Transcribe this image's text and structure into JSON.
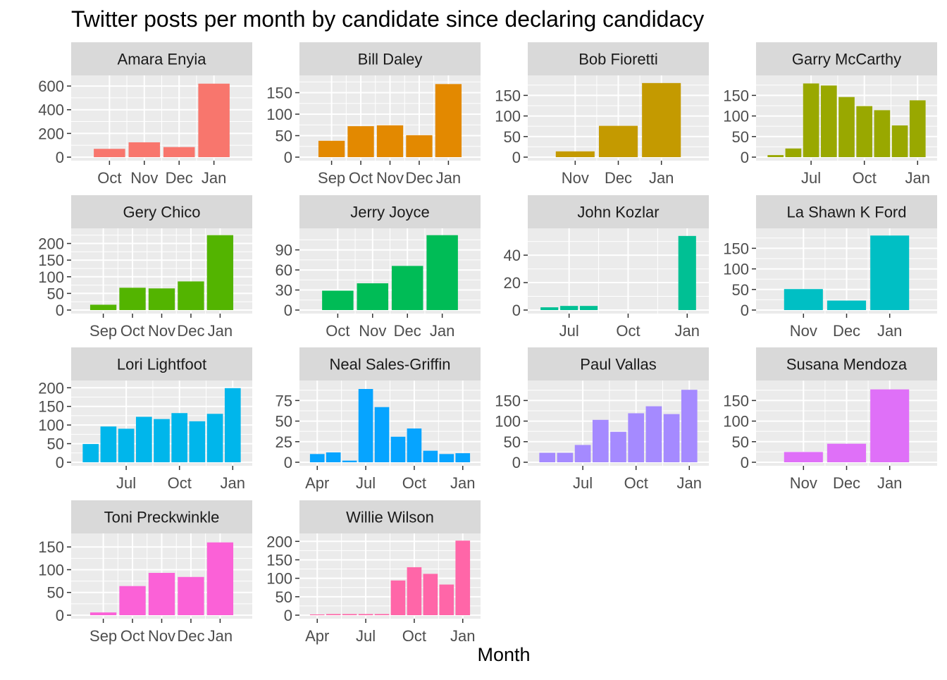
{
  "chart_data": {
    "type": "bar",
    "title": "Twitter posts per month by candidate since declaring candidacy",
    "xlabel": "Month",
    "ylabel": "",
    "grid": true,
    "legend": "none",
    "facets": [
      {
        "name": "Amara Enyia",
        "color": "#F8766D",
        "ylim": [
          0,
          660
        ],
        "yticks": [
          0,
          200,
          400,
          600
        ],
        "bars": [
          {
            "x": "2018-10",
            "y": 70
          },
          {
            "x": "2018-11",
            "y": 125
          },
          {
            "x": "2018-12",
            "y": 85
          },
          {
            "x": "2019-01",
            "y": 620
          }
        ],
        "xticks": [
          {
            "at": "2018-10",
            "label": "Oct"
          },
          {
            "at": "2018-11",
            "label": "Nov"
          },
          {
            "at": "2018-12",
            "label": "Dec"
          },
          {
            "at": "2019-01",
            "label": "Jan"
          }
        ]
      },
      {
        "name": "Bill Daley",
        "color": "#E38900",
        "ylim": [
          0,
          182
        ],
        "yticks": [
          0,
          50,
          100,
          150
        ],
        "bars": [
          {
            "x": "2018-09",
            "y": 38
          },
          {
            "x": "2018-10",
            "y": 72
          },
          {
            "x": "2018-11",
            "y": 74
          },
          {
            "x": "2018-12",
            "y": 51
          },
          {
            "x": "2019-01",
            "y": 170
          }
        ],
        "xticks": [
          {
            "at": "2018-09",
            "label": "Sep"
          },
          {
            "at": "2018-10",
            "label": "Oct"
          },
          {
            "at": "2018-11",
            "label": "Nov"
          },
          {
            "at": "2018-12",
            "label": "Dec"
          },
          {
            "at": "2019-01",
            "label": "Jan"
          }
        ]
      },
      {
        "name": "Bob Fioretti",
        "color": "#C49A00",
        "ylim": [
          0,
          190
        ],
        "yticks": [
          0,
          50,
          100,
          150
        ],
        "bars": [
          {
            "x": "2018-11",
            "y": 14
          },
          {
            "x": "2018-12",
            "y": 76
          },
          {
            "x": "2019-01",
            "y": 180
          }
        ],
        "xticks": [
          {
            "at": "2018-11",
            "label": "Nov"
          },
          {
            "at": "2018-12",
            "label": "Dec"
          },
          {
            "at": "2019-01",
            "label": "Jan"
          }
        ]
      },
      {
        "name": "Garry McCarthy",
        "color": "#99A800",
        "ylim": [
          0,
          190
        ],
        "yticks": [
          0,
          50,
          100,
          150
        ],
        "bars": [
          {
            "x": "2018-05",
            "y": 5
          },
          {
            "x": "2018-06",
            "y": 21
          },
          {
            "x": "2018-07",
            "y": 179
          },
          {
            "x": "2018-08",
            "y": 174
          },
          {
            "x": "2018-09",
            "y": 146
          },
          {
            "x": "2018-10",
            "y": 124
          },
          {
            "x": "2018-11",
            "y": 114
          },
          {
            "x": "2018-12",
            "y": 77
          },
          {
            "x": "2019-01",
            "y": 138
          }
        ],
        "xticks": [
          {
            "at": "2018-07",
            "label": "Jul"
          },
          {
            "at": "2018-10",
            "label": "Oct"
          },
          {
            "at": "2019-01",
            "label": "Jan"
          }
        ]
      },
      {
        "name": "Gery Chico",
        "color": "#53B400",
        "ylim": [
          0,
          235
        ],
        "yticks": [
          0,
          50,
          100,
          150,
          200
        ],
        "bars": [
          {
            "x": "2018-09",
            "y": 16
          },
          {
            "x": "2018-10",
            "y": 67
          },
          {
            "x": "2018-11",
            "y": 65
          },
          {
            "x": "2018-12",
            "y": 86
          },
          {
            "x": "2019-01",
            "y": 225
          }
        ],
        "xticks": [
          {
            "at": "2018-09",
            "label": "Sep"
          },
          {
            "at": "2018-10",
            "label": "Oct"
          },
          {
            "at": "2018-11",
            "label": "Nov"
          },
          {
            "at": "2018-12",
            "label": "Dec"
          },
          {
            "at": "2019-01",
            "label": "Jan"
          }
        ]
      },
      {
        "name": "Jerry Joyce",
        "color": "#00BC56",
        "ylim": [
          0,
          117
        ],
        "yticks": [
          0,
          30,
          60,
          90
        ],
        "bars": [
          {
            "x": "2018-10",
            "y": 29
          },
          {
            "x": "2018-11",
            "y": 40
          },
          {
            "x": "2018-12",
            "y": 66
          },
          {
            "x": "2019-01",
            "y": 112
          }
        ],
        "xticks": [
          {
            "at": "2018-10",
            "label": "Oct"
          },
          {
            "at": "2018-11",
            "label": "Nov"
          },
          {
            "at": "2018-12",
            "label": "Dec"
          },
          {
            "at": "2019-01",
            "label": "Jan"
          }
        ]
      },
      {
        "name": "John Kozlar",
        "color": "#00C094",
        "ylim": [
          0,
          57
        ],
        "yticks": [
          0,
          20,
          40
        ],
        "bars": [
          {
            "x": "2018-06",
            "y": 2
          },
          {
            "x": "2018-07",
            "y": 3
          },
          {
            "x": "2018-08",
            "y": 3
          },
          {
            "x": "2018-09",
            "y": 0
          },
          {
            "x": "2018-10",
            "y": 0
          },
          {
            "x": "2018-11",
            "y": 0
          },
          {
            "x": "2018-12",
            "y": 0
          },
          {
            "x": "2019-01",
            "y": 54
          }
        ],
        "xticks": [
          {
            "at": "2018-07",
            "label": "Jul"
          },
          {
            "at": "2018-10",
            "label": "Oct"
          },
          {
            "at": "2019-01",
            "label": "Jan"
          }
        ]
      },
      {
        "name": "La Shawn K Ford",
        "color": "#00BFC4",
        "ylim": [
          0,
          190
        ],
        "yticks": [
          0,
          50,
          100,
          150
        ],
        "bars": [
          {
            "x": "2018-11",
            "y": 51
          },
          {
            "x": "2018-12",
            "y": 23
          },
          {
            "x": "2019-01",
            "y": 181
          }
        ],
        "xticks": [
          {
            "at": "2018-11",
            "label": "Nov"
          },
          {
            "at": "2018-12",
            "label": "Dec"
          },
          {
            "at": "2019-01",
            "label": "Jan"
          }
        ]
      },
      {
        "name": "Lori Lightfoot",
        "color": "#00B6EB",
        "ylim": [
          0,
          210
        ],
        "yticks": [
          0,
          50,
          100,
          150,
          200
        ],
        "bars": [
          {
            "x": "2018-05",
            "y": 49
          },
          {
            "x": "2018-06",
            "y": 96
          },
          {
            "x": "2018-07",
            "y": 90
          },
          {
            "x": "2018-08",
            "y": 122
          },
          {
            "x": "2018-09",
            "y": 116
          },
          {
            "x": "2018-10",
            "y": 132
          },
          {
            "x": "2018-11",
            "y": 110
          },
          {
            "x": "2018-12",
            "y": 130
          },
          {
            "x": "2019-01",
            "y": 199
          }
        ],
        "xticks": [
          {
            "at": "2018-07",
            "label": "Jul"
          },
          {
            "at": "2018-10",
            "label": "Oct"
          },
          {
            "at": "2019-01",
            "label": "Jan"
          }
        ]
      },
      {
        "name": "Neal Sales-Griffin",
        "color": "#06A4FF",
        "ylim": [
          0,
          95
        ],
        "yticks": [
          0,
          25,
          50,
          75
        ],
        "bars": [
          {
            "x": "2018-04",
            "y": 10
          },
          {
            "x": "2018-05",
            "y": 12
          },
          {
            "x": "2018-06",
            "y": 2
          },
          {
            "x": "2018-07",
            "y": 89
          },
          {
            "x": "2018-08",
            "y": 67
          },
          {
            "x": "2018-09",
            "y": 31
          },
          {
            "x": "2018-10",
            "y": 41
          },
          {
            "x": "2018-11",
            "y": 14
          },
          {
            "x": "2018-12",
            "y": 10
          },
          {
            "x": "2019-01",
            "y": 11
          }
        ],
        "xticks": [
          {
            "at": "2018-04",
            "label": "Apr"
          },
          {
            "at": "2018-07",
            "label": "Jul"
          },
          {
            "at": "2018-10",
            "label": "Oct"
          },
          {
            "at": "2019-01",
            "label": "Jan"
          }
        ]
      },
      {
        "name": "Paul Vallas",
        "color": "#A58AFF",
        "ylim": [
          0,
          190
        ],
        "yticks": [
          0,
          50,
          100,
          150
        ],
        "bars": [
          {
            "x": "2018-05",
            "y": 23
          },
          {
            "x": "2018-06",
            "y": 23
          },
          {
            "x": "2018-07",
            "y": 42
          },
          {
            "x": "2018-08",
            "y": 103
          },
          {
            "x": "2018-09",
            "y": 74
          },
          {
            "x": "2018-10",
            "y": 119
          },
          {
            "x": "2018-11",
            "y": 136
          },
          {
            "x": "2018-12",
            "y": 117
          },
          {
            "x": "2019-01",
            "y": 176
          }
        ],
        "xticks": [
          {
            "at": "2018-07",
            "label": "Jul"
          },
          {
            "at": "2018-10",
            "label": "Oct"
          },
          {
            "at": "2019-01",
            "label": "Jan"
          }
        ]
      },
      {
        "name": "Susana Mendoza",
        "color": "#DF70F8",
        "ylim": [
          0,
          190
        ],
        "yticks": [
          0,
          50,
          100,
          150
        ],
        "bars": [
          {
            "x": "2018-11",
            "y": 25
          },
          {
            "x": "2018-12",
            "y": 45
          },
          {
            "x": "2019-01",
            "y": 177
          }
        ],
        "xticks": [
          {
            "at": "2018-11",
            "label": "Nov"
          },
          {
            "at": "2018-12",
            "label": "Dec"
          },
          {
            "at": "2019-01",
            "label": "Jan"
          }
        ]
      },
      {
        "name": "Toni Preckwinkle",
        "color": "#FB61D7",
        "ylim": [
          0,
          172
        ],
        "yticks": [
          0,
          50,
          100,
          150
        ],
        "bars": [
          {
            "x": "2018-09",
            "y": 6
          },
          {
            "x": "2018-10",
            "y": 64
          },
          {
            "x": "2018-11",
            "y": 93
          },
          {
            "x": "2018-12",
            "y": 84
          },
          {
            "x": "2019-01",
            "y": 160
          }
        ],
        "xticks": [
          {
            "at": "2018-09",
            "label": "Sep"
          },
          {
            "at": "2018-10",
            "label": "Oct"
          },
          {
            "at": "2018-11",
            "label": "Nov"
          },
          {
            "at": "2018-12",
            "label": "Dec"
          },
          {
            "at": "2019-01",
            "label": "Jan"
          }
        ]
      },
      {
        "name": "Willie Wilson",
        "color": "#FF66A8",
        "ylim": [
          0,
          212
        ],
        "yticks": [
          0,
          50,
          100,
          150,
          200
        ],
        "bars": [
          {
            "x": "2018-04",
            "y": 2
          },
          {
            "x": "2018-05",
            "y": 3
          },
          {
            "x": "2018-06",
            "y": 3
          },
          {
            "x": "2018-07",
            "y": 3
          },
          {
            "x": "2018-08",
            "y": 3
          },
          {
            "x": "2018-09",
            "y": 94
          },
          {
            "x": "2018-10",
            "y": 130
          },
          {
            "x": "2018-11",
            "y": 112
          },
          {
            "x": "2018-12",
            "y": 83
          },
          {
            "x": "2019-01",
            "y": 202
          }
        ],
        "xticks": [
          {
            "at": "2018-04",
            "label": "Apr"
          },
          {
            "at": "2018-07",
            "label": "Jul"
          },
          {
            "at": "2018-10",
            "label": "Oct"
          },
          {
            "at": "2019-01",
            "label": "Jan"
          }
        ]
      }
    ]
  }
}
